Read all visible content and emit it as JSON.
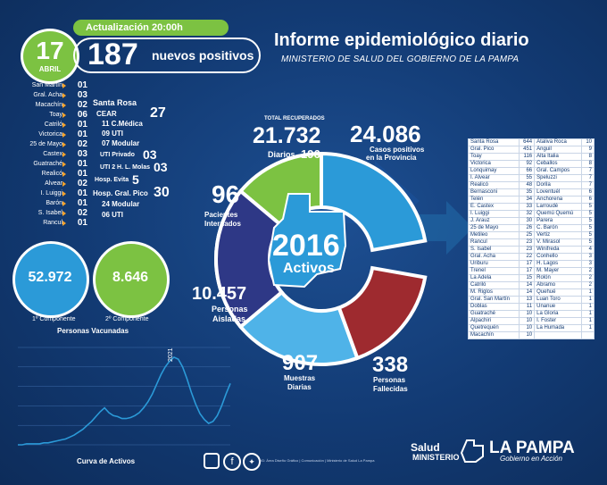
{
  "header": {
    "day": "17",
    "month": "ABRIL",
    "update_label": "Actualización 20:00h",
    "new_positives_count": "187",
    "new_positives_label": "nuevos positivos",
    "title": "Informe epidemiológico diario",
    "subtitle": "MINISTERIO DE SALUD DEL GOBIERNO DE LA PAMPA"
  },
  "departments": [
    {
      "name": "San Martín",
      "value": "01"
    },
    {
      "name": "Gral. Acha",
      "value": "03"
    },
    {
      "name": "Macachín",
      "value": "02"
    },
    {
      "name": "Toay",
      "value": "06"
    },
    {
      "name": "Catriló",
      "value": "01"
    },
    {
      "name": "Victorica",
      "value": "01"
    },
    {
      "name": "25 de Mayo",
      "value": "02"
    },
    {
      "name": "Castex",
      "value": "03"
    },
    {
      "name": "Guatraché",
      "value": "01"
    },
    {
      "name": "Realicó",
      "value": "01"
    },
    {
      "name": "Alvear",
      "value": "02"
    },
    {
      "name": "I. Luiggi",
      "value": "01"
    },
    {
      "name": "Barón",
      "value": "01"
    },
    {
      "name": "S. Isabel",
      "value": "02"
    },
    {
      "name": "Rancul",
      "value": "01"
    }
  ],
  "santa_rosa": {
    "title": "Santa Rosa",
    "cear_label": "CEAR",
    "cear_value": "27",
    "cear_lines": [
      "11 C.Médica",
      "09 UTI",
      "07 Modular"
    ],
    "uti_privado_label": "UTI Privado",
    "uti_privado_value": "03",
    "uti_molas_label": "UTI 2 H. L. Molas",
    "uti_molas_value": "03",
    "evita_label": "Hosp. Evita",
    "evita_value": "5",
    "gral_pico_label": "Hosp. Gral. Pico",
    "gral_pico_value": "30",
    "gral_pico_lines": [
      "24 Modular",
      "06 UTI"
    ]
  },
  "vaccination": {
    "first_value": "52.972",
    "first_label": "1º Componente",
    "second_value": "8.646",
    "second_label": "2º Componente",
    "caption": "Personas Vacunadas"
  },
  "circle": {
    "center_value": "2016",
    "center_label": "Activos",
    "recovered_header": "TOTAL RECUPERADOS",
    "recovered_value": "21.732",
    "recovered_daily_label": "Diarios",
    "recovered_daily_value": "196",
    "cases_value": "24.086",
    "cases_label_1": "Casos positivos",
    "cases_label_2": "en la Provincia",
    "hosp_value": "96",
    "hosp_label_1": "Pacientes",
    "hosp_label_2": "Internados",
    "isolated_value": "10.457",
    "isolated_label_1": "Personas",
    "isolated_label_2": "Aisladas",
    "samples_value": "907",
    "samples_label_1": "Muestras",
    "samples_label_2": "Diarias",
    "deaths_value": "338",
    "deaths_label_1": "Personas",
    "deaths_label_2": "Fallecidas",
    "colors": {
      "green": "#7cc242",
      "blue": "#2b9ad8",
      "orange": "#f5841f",
      "purple": "#2e3886",
      "lightblue": "#4fb3e8",
      "red": "#9e2a2f"
    }
  },
  "table_left": [
    [
      "Santa Rosa",
      "644"
    ],
    [
      "Gral. Pico",
      "451"
    ],
    [
      "Toay",
      "116"
    ],
    [
      "Victorica",
      "92"
    ],
    [
      "Lonquimay",
      "66"
    ],
    [
      "I. Alvear",
      "55"
    ],
    [
      "Realicó",
      "48"
    ],
    [
      "Bernasconi",
      "35"
    ],
    [
      "Telén",
      "34"
    ],
    [
      "E. Castex",
      "33"
    ],
    [
      "I. Luiggi",
      "32"
    ],
    [
      "J. Arauz",
      "30"
    ],
    [
      "25 de Mayo",
      "26"
    ],
    [
      "Metileo",
      "25"
    ],
    [
      "Rancul",
      "23"
    ],
    [
      "S. Isabel",
      "23"
    ],
    [
      "Gral. Acha",
      "22"
    ],
    [
      "Uriburu",
      "17"
    ],
    [
      "Trenel",
      "17"
    ],
    [
      "La Adela",
      "15"
    ],
    [
      "Catriló",
      "14"
    ],
    [
      "M. Riglos",
      "14"
    ],
    [
      "Gral. San Martín",
      "13"
    ],
    [
      "Doblas",
      "11"
    ],
    [
      "Guatraché",
      "10"
    ],
    [
      "Alpachiri",
      "10"
    ],
    [
      "Quetrequén",
      "10"
    ],
    [
      "Macachín",
      "10"
    ]
  ],
  "table_right": [
    [
      "Ataliva Roca",
      "10"
    ],
    [
      "Anguil",
      "9"
    ],
    [
      "Alta Italia",
      "8"
    ],
    [
      "Ceballos",
      "8"
    ],
    [
      "Gral. Campos",
      "7"
    ],
    [
      "Speluzzi",
      "7"
    ],
    [
      "Dorila",
      "7"
    ],
    [
      "Loventuél",
      "6"
    ],
    [
      "Anchorena",
      "6"
    ],
    [
      "Larroudé",
      "5"
    ],
    [
      "Quemú Quemú",
      "5"
    ],
    [
      "Parera",
      "5"
    ],
    [
      "C. Barón",
      "5"
    ],
    [
      "Vertiz",
      "5"
    ],
    [
      "V. Mirasol",
      "5"
    ],
    [
      "Winifreda",
      "4"
    ],
    [
      "Conhello",
      "3"
    ],
    [
      "H. Lagos",
      "3"
    ],
    [
      "M. Mayer",
      "2"
    ],
    [
      "Rolón",
      "2"
    ],
    [
      "Abramo",
      "2"
    ],
    [
      "Quehué",
      "1"
    ],
    [
      "Luan Toro",
      "1"
    ],
    [
      "Unanue",
      "1"
    ],
    [
      "La Gloria",
      "1"
    ],
    [
      "I. Foster",
      "1"
    ],
    [
      "La Humada",
      "1"
    ]
  ],
  "chart_data": {
    "type": "line",
    "title": "Curva de Activos",
    "annotation": "2021",
    "x": [
      0,
      1,
      2,
      3,
      4,
      5,
      6,
      7,
      8,
      9,
      10,
      11,
      12,
      13,
      14,
      15,
      16,
      17,
      18,
      19,
      20,
      21,
      22,
      23,
      24,
      25,
      26,
      27,
      28,
      29,
      30,
      31,
      32,
      33,
      34,
      35,
      36,
      37,
      38,
      39,
      40,
      41,
      42,
      43,
      44,
      45,
      46,
      47,
      48,
      49
    ],
    "y": [
      0,
      0,
      0,
      0,
      0,
      0,
      0,
      0,
      0,
      0,
      0,
      0,
      0,
      0,
      0,
      0,
      0,
      0,
      0,
      0,
      0,
      0,
      0,
      0,
      0,
      0,
      0,
      0,
      0,
      0,
      0,
      0,
      0,
      0,
      0,
      0,
      0,
      0,
      0,
      0,
      0,
      0,
      0,
      0,
      0,
      0,
      0,
      0,
      0,
      0
    ],
    "series": [
      {
        "values": [
          0.0,
          0.0,
          0.01,
          0.01,
          0.01,
          0.01,
          0.02,
          0.02,
          0.03,
          0.04,
          0.05,
          0.06,
          0.08,
          0.1,
          0.13,
          0.16,
          0.2,
          0.24,
          0.29,
          0.34,
          0.38,
          0.33,
          0.3,
          0.29,
          0.27,
          0.27,
          0.28,
          0.3,
          0.33,
          0.38,
          0.44,
          0.52,
          0.62,
          0.72,
          0.8,
          0.86,
          0.9,
          0.88,
          0.8,
          0.68,
          0.54,
          0.42,
          0.32,
          0.26,
          0.22,
          0.24,
          0.3,
          0.4,
          0.52,
          0.63
        ]
      }
    ],
    "ylim": [
      0,
      1
    ],
    "grid": true,
    "line_color": "#2b9ad8"
  },
  "footer": {
    "credit": "DG: Área Diseño Gráfico | Comunicación | Ministerio de Salud La Pampa",
    "salud": "Salud",
    "ministerio": "MINISTERIO",
    "lapampa": "LA PAMPA",
    "gobierno": "Gobierno en Acción",
    "icons": [
      "instagram-icon",
      "facebook-icon",
      "twitter-icon"
    ]
  }
}
